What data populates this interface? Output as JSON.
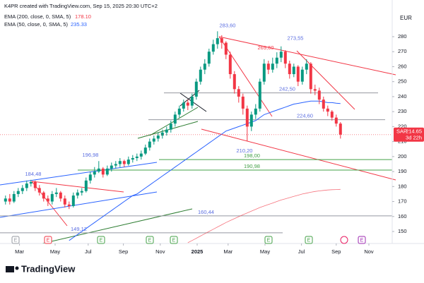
{
  "header": {
    "credit": "K4PR created with TradingView.com, Sep 15, 2025 20:30 UTC+2"
  },
  "footer": {
    "brand": "TradingView"
  },
  "chart_data": {
    "type": "candlestick",
    "symbol": "SAP",
    "currency": "EUR",
    "last_value": {
      "value": 214.65,
      "label": "214.65"
    },
    "countdown": "3d 22h",
    "up_color": "#089981",
    "down_color": "#f23645",
    "open": [
      170,
      172,
      170,
      175,
      177,
      179,
      182,
      183,
      179,
      176,
      172,
      170,
      175,
      176,
      172,
      168,
      167,
      174,
      176,
      177,
      184,
      188,
      190,
      192,
      188,
      192,
      194,
      195,
      197,
      195,
      198,
      199,
      200,
      202,
      206,
      210,
      212,
      214,
      216,
      218,
      222,
      228,
      232,
      236,
      234,
      240,
      250,
      258,
      262,
      270,
      275,
      279,
      276,
      268,
      255,
      245,
      240,
      232,
      220,
      228,
      232,
      250,
      262,
      258,
      262,
      266,
      270,
      262,
      255,
      260,
      250,
      258,
      262,
      245,
      244,
      238,
      232,
      230,
      226,
      222
    ],
    "high": [
      174,
      175,
      177,
      179,
      181,
      184,
      184.48,
      184,
      181,
      177,
      174,
      177,
      179,
      177,
      174,
      170,
      176,
      178,
      179,
      186,
      190,
      193,
      196.98,
      193,
      194,
      196,
      197,
      199,
      198,
      200,
      201,
      202,
      204,
      208,
      212,
      214,
      216,
      218,
      220,
      224,
      230,
      234,
      238,
      238,
      242,
      252,
      260,
      265,
      272,
      278,
      283.6,
      281,
      277,
      270,
      257,
      247,
      242,
      234,
      230,
      235,
      252,
      265,
      264,
      266,
      269.6,
      273.55,
      271,
      264,
      262,
      261,
      260,
      265,
      263,
      248,
      246,
      240,
      234,
      231,
      228,
      223
    ],
    "low": [
      168,
      168,
      169,
      173,
      175,
      177,
      180,
      177,
      174,
      170,
      167,
      168,
      173,
      170,
      166,
      165,
      166,
      172,
      174,
      176,
      182,
      186,
      189,
      186,
      187,
      190,
      192,
      193,
      193,
      194,
      196,
      197,
      198,
      201,
      204,
      208,
      210,
      212,
      214,
      216,
      220,
      226,
      230,
      231,
      232,
      238,
      248,
      255,
      260,
      268,
      272,
      272,
      265,
      252,
      242,
      236,
      228,
      210.2,
      217,
      225,
      230,
      248,
      255,
      256,
      259,
      263,
      259,
      252,
      253,
      247,
      248,
      255,
      242,
      241,
      235,
      230,
      227,
      224,
      220,
      212
    ],
    "close": [
      172,
      170,
      175,
      177,
      179,
      182,
      183,
      179,
      176,
      172,
      170,
      175,
      176,
      172,
      168,
      167,
      174,
      176,
      177,
      184,
      188,
      190,
      192,
      188,
      192,
      194,
      195,
      197,
      195,
      198,
      199,
      200,
      202,
      206,
      210,
      212,
      214,
      216,
      218,
      222,
      228,
      232,
      236,
      234,
      240,
      250,
      258,
      262,
      270,
      275,
      279,
      276,
      268,
      255,
      245,
      240,
      232,
      220,
      228,
      232,
      250,
      262,
      258,
      262,
      266,
      270,
      262,
      255,
      260,
      250,
      258,
      262,
      245,
      244,
      238,
      232,
      230,
      226,
      222,
      214.65
    ],
    "series": [
      {
        "name": "EMA (200, close, 0, SMA, 5)",
        "value_label": "178.10",
        "color": "#f23645",
        "values": [
          null,
          null,
          null,
          null,
          null,
          null,
          null,
          null,
          null,
          null,
          null,
          null,
          null,
          null,
          null,
          null,
          null,
          null,
          null,
          null,
          null,
          null,
          null,
          null,
          null,
          null,
          null,
          null,
          null,
          null,
          null,
          null,
          null,
          null,
          null,
          null,
          null,
          null,
          null,
          null,
          null,
          null,
          null,
          142.5,
          144,
          145.5,
          147,
          148.5,
          150,
          151.5,
          153,
          154.5,
          156,
          157.3,
          158.6,
          159.9,
          161.2,
          162.4,
          163.6,
          164.8,
          166,
          167,
          168,
          169,
          170,
          171,
          171.8,
          172.6,
          173.4,
          174.2,
          175,
          175.6,
          176.2,
          176.7,
          177.1,
          177.4,
          177.7,
          177.9,
          178,
          178.1
        ]
      },
      {
        "name": "EMA (50, close, 0, SMA, 5)",
        "value_label": "235.33",
        "color": "#2962ff",
        "values": [
          null,
          null,
          null,
          null,
          null,
          null,
          null,
          null,
          null,
          null,
          null,
          null,
          null,
          null,
          null,
          144,
          146,
          148,
          150,
          152,
          154,
          156,
          158,
          160,
          162,
          164,
          166,
          168,
          170,
          172,
          174,
          175,
          177,
          179,
          181,
          183,
          185,
          187,
          189,
          191,
          193,
          195,
          197,
          199,
          201,
          203,
          205,
          207,
          209,
          211,
          213,
          215,
          217,
          218,
          219,
          220,
          221,
          222,
          223,
          224,
          226,
          228,
          229,
          230,
          231,
          232,
          233,
          234,
          235,
          235.5,
          236,
          236.5,
          237,
          237,
          237,
          236.5,
          236,
          236,
          235.6,
          235.33
        ]
      }
    ],
    "levels": [
      {
        "value": 242.5,
        "label": "242,50",
        "color": "#5b6ee1"
      },
      {
        "value": 224.6,
        "label": "224,60",
        "color": "#5b6ee1"
      },
      {
        "value": 198,
        "label": "198,00",
        "color": "#43a047"
      },
      {
        "value": 190.98,
        "label": "190,98",
        "color": "#43a047"
      },
      {
        "value": 160.44,
        "label": "160,44",
        "color": "#5b6ee1"
      },
      {
        "value": 149.12,
        "label": "149,12",
        "color": "#5b6ee1"
      }
    ],
    "annotations": [
      {
        "value": 283.6,
        "label": "283,60",
        "color": "#5b6ee1"
      },
      {
        "value": 269.6,
        "label": "269,60",
        "color": "#f23645"
      },
      {
        "value": 273.55,
        "label": "273,55",
        "color": "#5b6ee1"
      },
      {
        "value": 210.2,
        "label": "210,20",
        "color": "#5b6ee1"
      },
      {
        "value": 196.98,
        "label": "196,98",
        "color": "#5b6ee1"
      },
      {
        "value": 184.48,
        "label": "184,48",
        "color": "#5b6ee1"
      }
    ],
    "events": [
      "E",
      "E",
      "E",
      "E",
      "E",
      "E",
      "E",
      "E"
    ],
    "xlim": [
      -1.3,
      91.2
    ],
    "xticks": [
      {
        "value": 3.3,
        "label": "Mar"
      },
      {
        "value": 11.7,
        "label": "May"
      },
      {
        "value": 19.5,
        "label": "Jul"
      },
      {
        "value": 27.8,
        "label": "Sep"
      },
      {
        "value": 36.5,
        "label": "Nov"
      },
      {
        "value": 45.2,
        "label": "2025"
      },
      {
        "value": 52.5,
        "label": "Mar"
      },
      {
        "value": 61.2,
        "label": "May"
      },
      {
        "value": 69.8,
        "label": "Jul"
      },
      {
        "value": 78,
        "label": "Sep"
      },
      {
        "value": 85.7,
        "label": "Nov"
      }
    ],
    "ylim": [
      142,
      296
    ],
    "yticks": [
      150,
      160,
      170,
      180,
      190,
      200,
      210,
      220,
      230,
      240,
      250,
      260,
      270,
      280
    ]
  }
}
